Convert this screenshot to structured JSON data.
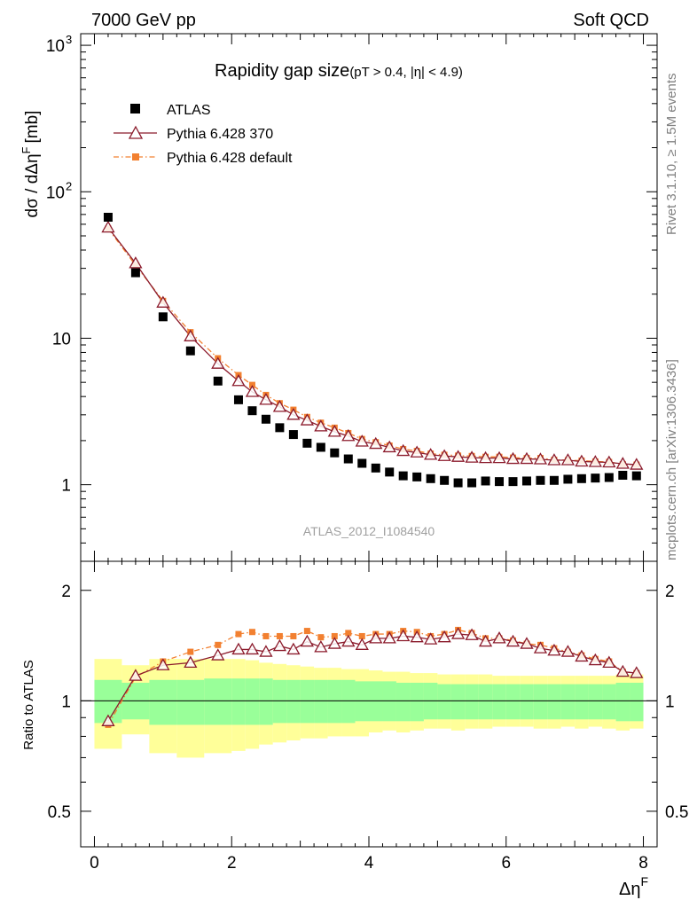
{
  "header": {
    "left": "7000 GeV pp",
    "right": "Soft QCD"
  },
  "side": {
    "rivet": "Rivet 3.1.10, ≥ 1.5M events",
    "mcplots": "mcplots.cern.ch [arXiv:1306.3436]"
  },
  "chart_data": {
    "type": "scatter",
    "title": "Rapidity gap size",
    "title_suffix": "(pT > 0.4, |η| < 4.9)",
    "watermark": "ATLAS_2012_I1084540",
    "xlabel": "Δη",
    "xlabel_sup": "F",
    "ylabel": "dσ / dΔη",
    "ylabel_sup": "F",
    "ylabel_unit": "[mb]",
    "ratio_ylabel": "Ratio to ATLAS",
    "xlim": [
      -0.2,
      8.2
    ],
    "ylim": [
      0.3,
      1200
    ],
    "yscale": "log",
    "ratio_ylim": [
      0.4,
      2.4
    ],
    "ratio_yscale": "log",
    "x_ticks": [
      "0",
      "2",
      "4",
      "6",
      "8"
    ],
    "y_ticks": [
      "1",
      "10",
      "10",
      "10"
    ],
    "y_tick_sups": [
      "",
      "",
      "2",
      "3"
    ],
    "ratio_y_ticks": [
      "0.5",
      "1",
      "2"
    ],
    "legend_position": "top-left",
    "x": [
      0.2,
      0.6,
      1.0,
      1.4,
      1.8,
      2.1,
      2.3,
      2.5,
      2.7,
      2.9,
      3.1,
      3.3,
      3.5,
      3.7,
      3.9,
      4.1,
      4.3,
      4.5,
      4.7,
      4.9,
      5.1,
      5.3,
      5.5,
      5.7,
      5.9,
      6.1,
      6.3,
      6.5,
      6.7,
      6.9,
      7.1,
      7.3,
      7.5,
      7.7,
      7.9
    ],
    "series": [
      {
        "name": "ATLAS",
        "color": "#000000",
        "values": [
          67,
          28,
          14,
          8.2,
          5.1,
          3.8,
          3.2,
          2.8,
          2.45,
          2.2,
          1.92,
          1.8,
          1.65,
          1.5,
          1.4,
          1.3,
          1.22,
          1.15,
          1.13,
          1.1,
          1.07,
          1.03,
          1.03,
          1.06,
          1.05,
          1.05,
          1.06,
          1.07,
          1.07,
          1.09,
          1.1,
          1.11,
          1.12,
          1.16,
          1.15
        ]
      },
      {
        "name": "Pythia 6.428 370",
        "color": "#8b1a2b",
        "values": [
          57,
          32.5,
          17.5,
          10.3,
          6.7,
          5.1,
          4.3,
          3.8,
          3.4,
          3.0,
          2.75,
          2.5,
          2.3,
          2.15,
          1.97,
          1.9,
          1.8,
          1.7,
          1.66,
          1.6,
          1.57,
          1.55,
          1.53,
          1.52,
          1.52,
          1.5,
          1.5,
          1.49,
          1.47,
          1.47,
          1.44,
          1.43,
          1.42,
          1.39,
          1.37
        ]
      },
      {
        "name": "Pythia 6.428 default",
        "color": "#f28030",
        "values": [
          56,
          31.5,
          18,
          11,
          7.3,
          5.6,
          4.8,
          4.1,
          3.6,
          3.25,
          2.9,
          2.65,
          2.45,
          2.25,
          2.05,
          1.95,
          1.85,
          1.75,
          1.7,
          1.63,
          1.6,
          1.58,
          1.57,
          1.55,
          1.55,
          1.53,
          1.52,
          1.52,
          1.48,
          1.47,
          1.46,
          1.44,
          1.43,
          1.38,
          1.37
        ]
      }
    ],
    "ratio_series": [
      {
        "name": "Pythia 6.428 370",
        "values": [
          0.88,
          1.17,
          1.25,
          1.27,
          1.33,
          1.38,
          1.38,
          1.36,
          1.41,
          1.38,
          1.45,
          1.4,
          1.43,
          1.45,
          1.42,
          1.48,
          1.48,
          1.5,
          1.49,
          1.47,
          1.49,
          1.52,
          1.51,
          1.45,
          1.48,
          1.45,
          1.43,
          1.39,
          1.37,
          1.36,
          1.32,
          1.29,
          1.27,
          1.2,
          1.19
        ]
      },
      {
        "name": "Pythia 6.428 default",
        "values": [
          0.86,
          1.16,
          1.28,
          1.36,
          1.42,
          1.52,
          1.54,
          1.5,
          1.5,
          1.5,
          1.55,
          1.49,
          1.5,
          1.53,
          1.5,
          1.52,
          1.52,
          1.55,
          1.54,
          1.5,
          1.52,
          1.56,
          1.53,
          1.48,
          1.48,
          1.46,
          1.43,
          1.42,
          1.39,
          1.36,
          1.33,
          1.3,
          1.28,
          1.2,
          1.19
        ]
      }
    ],
    "ratio_bands": {
      "stat_color": "#99ff99",
      "syst_color": "#ffff99",
      "x_edges": [
        0.0,
        0.4,
        0.8,
        1.2,
        1.6,
        2.0,
        2.2,
        2.4,
        2.6,
        2.8,
        3.0,
        3.2,
        3.4,
        3.6,
        3.8,
        4.0,
        4.2,
        4.4,
        4.6,
        4.8,
        5.0,
        5.2,
        5.4,
        5.6,
        5.8,
        6.0,
        6.2,
        6.4,
        6.6,
        6.8,
        7.0,
        7.2,
        7.4,
        7.6,
        7.8,
        8.0
      ],
      "stat_lo": [
        0.87,
        0.89,
        0.86,
        0.86,
        0.86,
        0.86,
        0.86,
        0.86,
        0.87,
        0.87,
        0.87,
        0.87,
        0.87,
        0.87,
        0.88,
        0.88,
        0.88,
        0.88,
        0.88,
        0.89,
        0.89,
        0.89,
        0.89,
        0.89,
        0.89,
        0.89,
        0.89,
        0.89,
        0.89,
        0.89,
        0.89,
        0.89,
        0.89,
        0.88,
        0.88
      ],
      "stat_hi": [
        1.14,
        1.12,
        1.14,
        1.14,
        1.15,
        1.15,
        1.15,
        1.15,
        1.14,
        1.14,
        1.14,
        1.14,
        1.14,
        1.14,
        1.13,
        1.13,
        1.13,
        1.12,
        1.12,
        1.12,
        1.11,
        1.11,
        1.11,
        1.11,
        1.11,
        1.11,
        1.11,
        1.11,
        1.11,
        1.11,
        1.11,
        1.11,
        1.11,
        1.12,
        1.12
      ],
      "syst_lo": [
        0.74,
        0.81,
        0.72,
        0.7,
        0.72,
        0.73,
        0.74,
        0.76,
        0.77,
        0.78,
        0.79,
        0.79,
        0.8,
        0.8,
        0.8,
        0.82,
        0.83,
        0.82,
        0.83,
        0.84,
        0.84,
        0.83,
        0.84,
        0.84,
        0.85,
        0.85,
        0.85,
        0.84,
        0.84,
        0.85,
        0.84,
        0.85,
        0.84,
        0.83,
        0.84
      ],
      "syst_hi": [
        1.3,
        1.25,
        1.3,
        1.3,
        1.3,
        1.3,
        1.29,
        1.27,
        1.26,
        1.25,
        1.24,
        1.23,
        1.23,
        1.22,
        1.22,
        1.21,
        1.2,
        1.2,
        1.19,
        1.19,
        1.18,
        1.18,
        1.18,
        1.18,
        1.17,
        1.17,
        1.17,
        1.17,
        1.17,
        1.17,
        1.17,
        1.17,
        1.17,
        1.18,
        1.18
      ]
    }
  }
}
